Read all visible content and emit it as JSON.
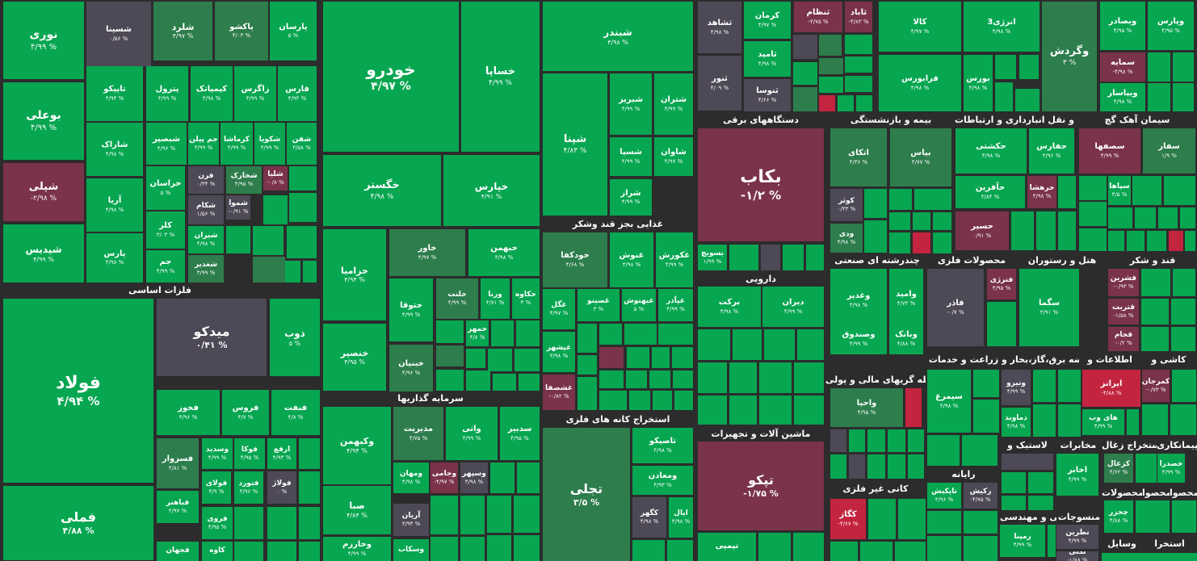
{
  "colors": {
    "positive": "#07a651",
    "light_positive": "#15b05a",
    "muted_positive": "#2e7d4d",
    "neutral": "#4e4956",
    "negative": "#c3243f",
    "dark_negative": "#7a3349",
    "background": "#2c2c2c"
  },
  "headers": [
    {
      "id": "h-fezat",
      "label": "فلزات اساسی"
    },
    {
      "id": "h-ghazaei",
      "label": "غذایی بجز قند وشکر"
    },
    {
      "id": "h-sarmaye",
      "label": "سرمایه گذاریها"
    },
    {
      "id": "h-estekhraj",
      "label": "استخراج کانه های فلزی"
    },
    {
      "id": "h-dastgah",
      "label": "دستگاههای برقی"
    },
    {
      "id": "h-bime",
      "label": "بیمه و بازنشستگی"
    },
    {
      "id": "h-haml",
      "label": "حمل و نقل انبارداری و ارتباطات"
    },
    {
      "id": "h-siman",
      "label": "سیمان آهک گچ"
    },
    {
      "id": "h-darooei",
      "label": "دارویی"
    },
    {
      "id": "h-chand",
      "label": "چندرشته ای صنعتی"
    },
    {
      "id": "h-mahsulat",
      "label": "محصولات فلزی"
    },
    {
      "id": "h-hotel",
      "label": "هتل و رستوران"
    },
    {
      "id": "h-ghand",
      "label": "قند و شکر"
    },
    {
      "id": "h-zeraat",
      "label": "زراعت و خدمات"
    },
    {
      "id": "h-arze",
      "label": "عرضه برق،گاز،بخار و"
    },
    {
      "id": "h-ettelaat",
      "label": "اطلاعات و"
    },
    {
      "id": "h-kashi",
      "label": "کاشی و"
    },
    {
      "id": "h-vasete",
      "label": "واسطه گریهای مالی و پولی"
    },
    {
      "id": "h-mashin",
      "label": "ماشین آلات و تجهیزات"
    },
    {
      "id": "h-raiane",
      "label": "رایانه"
    },
    {
      "id": "h-lastik",
      "label": "لاستیک و"
    },
    {
      "id": "h-mokhaberat",
      "label": "مخابرات"
    },
    {
      "id": "h-estekhrajzoghal",
      "label": "استخراج زغال"
    },
    {
      "id": "h-peyman",
      "label": "پیمانکاری"
    },
    {
      "id": "h-kani",
      "label": "کانی غیر فلزی"
    },
    {
      "id": "h-fani",
      "label": "فنی و مهندسی"
    },
    {
      "id": "h-mansujat",
      "label": "منسوجات"
    },
    {
      "id": "h-mahsula1",
      "label": "محصولات"
    },
    {
      "id": "h-mahsula2",
      "label": "محصوا"
    },
    {
      "id": "h-mahsula3",
      "label": "محصوا"
    },
    {
      "id": "h-vasayel",
      "label": "وسایل"
    },
    {
      "id": "h-estekhr2",
      "label": "استخرا"
    }
  ],
  "tiles": [
    {
      "id": "noori",
      "name": "نوری",
      "pct": "۴/۹۹ %",
      "c": "g"
    },
    {
      "id": "shasta",
      "name": "شسینا",
      "pct": "۰/۵۶ %",
      "c": "gr"
    },
    {
      "id": "sharod",
      "name": "شلرد",
      "pct": "۴/۹۷ %",
      "c": "dg"
    },
    {
      "id": "pakshoo",
      "name": "پاکشو",
      "pct": "۴/۰۳ %",
      "c": "dg"
    },
    {
      "id": "parsan",
      "name": "پارسان",
      "pct": "۵ %",
      "c": "g"
    },
    {
      "id": "booali",
      "name": "بوعلی",
      "pct": "۴/۹۹ %",
      "c": "g"
    },
    {
      "id": "tapiko",
      "name": "تاپیکو",
      "pct": "۴/۹۴ %",
      "c": "g"
    },
    {
      "id": "petrol",
      "name": "پترول",
      "pct": "۴/۹۹ %",
      "c": "g"
    },
    {
      "id": "kimiatec",
      "name": "کیمیاتک",
      "pct": "۴/۹۸ %",
      "c": "g"
    },
    {
      "id": "zagros",
      "name": "زاگرس",
      "pct": "۴/۹۹ %",
      "c": "g"
    },
    {
      "id": "fars",
      "name": "فارس",
      "pct": "۴/۹۴ %",
      "c": "g"
    },
    {
      "id": "shapli",
      "name": "شپلی",
      "pct": "-۲/۹۸ %",
      "c": "dr"
    },
    {
      "id": "sharak",
      "name": "شاراک",
      "pct": "۴/۹۸ %",
      "c": "g"
    },
    {
      "id": "shbandar",
      "name": "شبصیر",
      "pct": "۴/۹۶ %",
      "c": "g"
    },
    {
      "id": "jampilan",
      "name": "جم پیلن",
      "pct": "۴/۹۹ %",
      "c": "g"
    },
    {
      "id": "karmasha",
      "name": "کرماشا",
      "pct": "۴/۹۹ %",
      "c": "g"
    },
    {
      "id": "shkobir",
      "name": "شکویا",
      "pct": "۴/۹۹ %",
      "c": "g"
    },
    {
      "id": "shafan",
      "name": "شفن",
      "pct": "۳/۵۸ %",
      "c": "g"
    },
    {
      "id": "aria",
      "name": "آریا",
      "pct": "۴/۹۸ %",
      "c": "g"
    },
    {
      "id": "khorasan",
      "name": "خراسان",
      "pct": "۵ %",
      "c": "g"
    },
    {
      "id": "faran",
      "name": "فرن",
      "pct": "۰/۳۴ %",
      "c": "gr"
    },
    {
      "id": "shkharak",
      "name": "شخارک",
      "pct": "۴/۹۵ %",
      "c": "dg"
    },
    {
      "id": "shloa",
      "name": "شلیا",
      "pct": "-۰/۸ %",
      "c": "dr"
    },
    {
      "id": "shakam",
      "name": "شکام",
      "pct": "۱/۵۶ %",
      "c": "gr"
    },
    {
      "id": "shamvad",
      "name": "شموا",
      "pct": "-۰/۹۱ %",
      "c": "gr"
    },
    {
      "id": "shepdis",
      "name": "شپدیس",
      "pct": "۴/۹۹ %",
      "c": "g"
    },
    {
      "id": "pars",
      "name": "پارس",
      "pct": "۴/۹۸ %",
      "c": "g"
    },
    {
      "id": "klar",
      "name": "کلر",
      "pct": "۳/۰۳ %",
      "c": "g"
    },
    {
      "id": "shiran",
      "name": "شیران",
      "pct": "۴/۹۸ %",
      "c": "g"
    },
    {
      "id": "jam",
      "name": "جم",
      "pct": "۴/۹۹ %",
      "c": "g"
    },
    {
      "id": "shghadir",
      "name": "شغدیر",
      "pct": "۴/۹۹ %",
      "c": "dg"
    },
    {
      "id": "foolad",
      "name": "فولاد",
      "pct": "۴/۹۴ %",
      "c": "g"
    },
    {
      "id": "midco",
      "name": "میدکو",
      "pct": "۰/۴۱ %",
      "c": "gr"
    },
    {
      "id": "zob",
      "name": "ذوب",
      "pct": "۵ %",
      "c": "g"
    },
    {
      "id": "fkhooz",
      "name": "فخوز",
      "pct": "۴/۹۶ %",
      "c": "g"
    },
    {
      "id": "foroos",
      "name": "فروس",
      "pct": "۴/۷ %",
      "c": "g"
    },
    {
      "id": "fanft",
      "name": "فنفت",
      "pct": "۴/۸ %",
      "c": "g"
    },
    {
      "id": "fesazvar",
      "name": "فسزوار",
      "pct": "۴/۸۱ %",
      "c": "dg"
    },
    {
      "id": "vasdid",
      "name": "وسدید",
      "pct": "۴/۹۹ %",
      "c": "g"
    },
    {
      "id": "foka",
      "name": "فوکا",
      "pct": "۴/۹۵ %",
      "c": "g"
    },
    {
      "id": "arfa",
      "name": "ارفع",
      "pct": "۴/۹۳ %",
      "c": "g"
    },
    {
      "id": "foolai",
      "name": "فولای",
      "pct": "۴/۹ %",
      "c": "g"
    },
    {
      "id": "fnoord",
      "name": "فنورد",
      "pct": "۴/۹۶ %",
      "c": "g"
    },
    {
      "id": "folaj",
      "name": "فولاژ",
      "pct": "۰ %",
      "c": "gr"
    },
    {
      "id": "famli",
      "name": "فملی",
      "pct": "۴/۸۸ %",
      "c": "g"
    },
    {
      "id": "faahar",
      "name": "فباهنر",
      "pct": "۴/۹۷ %",
      "c": "g"
    },
    {
      "id": "faroo",
      "name": "فروی",
      "pct": "۴/۹۵ %",
      "c": "g"
    },
    {
      "id": "fjahan",
      "name": "فجهان",
      "pct": "",
      "c": "g"
    },
    {
      "id": "kaveh",
      "name": "کاوه",
      "pct": "",
      "c": "g"
    },
    {
      "id": "khodro",
      "name": "خودرو",
      "pct": "۴/۹۷ %",
      "c": "g"
    },
    {
      "id": "khsapa",
      "name": "خساپا",
      "pct": "۴/۹۹ %",
      "c": "g"
    },
    {
      "id": "khgostar",
      "name": "خگستر",
      "pct": "۴/۹۸ %",
      "c": "g"
    },
    {
      "id": "khparse",
      "name": "خپارس",
      "pct": "۴/۹۱ %",
      "c": "g"
    },
    {
      "id": "khazamia",
      "name": "خزامیا",
      "pct": "۴/۹۴ %",
      "c": "g"
    },
    {
      "id": "khavar",
      "name": "خاور",
      "pct": "۴/۹۷ %",
      "c": "dg"
    },
    {
      "id": "khbahman",
      "name": "خبهمن",
      "pct": "۴/۹۸ %",
      "c": "g"
    },
    {
      "id": "khtoofa",
      "name": "ختوقا",
      "pct": "۴/۹۹ %",
      "c": "g"
    },
    {
      "id": "khlant",
      "name": "خلنت",
      "pct": "۴/۹۹ %",
      "c": "dg"
    },
    {
      "id": "varna",
      "name": "ورنا",
      "pct": "۴/۷۱ %",
      "c": "g"
    },
    {
      "id": "khakaveh",
      "name": "خکاوه",
      "pct": "۳ %",
      "c": "g"
    },
    {
      "id": "khomehr",
      "name": "خمهر",
      "pct": "۴/۸ %",
      "c": "g"
    },
    {
      "id": "khonsar",
      "name": "خنصیر",
      "pct": "۴/۹۵ %",
      "c": "g"
    },
    {
      "id": "khbanian",
      "name": "خبنیان",
      "pct": "۴/۹۶ %",
      "c": "dg"
    },
    {
      "id": "shabandar",
      "name": "شبندر",
      "pct": "۴/۹۸ %",
      "c": "g"
    },
    {
      "id": "shepna",
      "name": "شپنا",
      "pct": "۴/۸۳ %",
      "c": "g"
    },
    {
      "id": "shbriz",
      "name": "شبریز",
      "pct": "۴/۹۹ %",
      "c": "g"
    },
    {
      "id": "shtran",
      "name": "شتران",
      "pct": "۴/۹۹ %",
      "c": "g"
    },
    {
      "id": "shsapa",
      "name": "شسپا",
      "pct": "۴/۹۹ %",
      "c": "g"
    },
    {
      "id": "shavan",
      "name": "شاوان",
      "pct": "۴/۹۷ %",
      "c": "g"
    },
    {
      "id": "shraz",
      "name": "شراز",
      "pct": "۴/۹۹ %",
      "c": "g"
    },
    {
      "id": "khoodkafa",
      "name": "خودکفا",
      "pct": "۴/۶۸ %",
      "c": "dg"
    },
    {
      "id": "ghnosh",
      "name": "غنوش",
      "pct": "۴/۹۸ %",
      "c": "g"
    },
    {
      "id": "ghkoresh",
      "name": "غکورش",
      "pct": "۴/۹۹ %",
      "c": "g"
    },
    {
      "id": "ghgol",
      "name": "غگل",
      "pct": "۴/۹۷ %",
      "c": "g"
    },
    {
      "id": "ghasino",
      "name": "غصینو",
      "pct": "۳ %",
      "c": "g"
    },
    {
      "id": "ghbahnoosh",
      "name": "غبهنوش",
      "pct": "۵ %",
      "c": "g"
    },
    {
      "id": "ghzagar",
      "name": "غپآذر",
      "pct": "۴/۹۹ %",
      "c": "g"
    },
    {
      "id": "ghshahr",
      "name": "غیشهر",
      "pct": "۴/۹۸ %",
      "c": "g"
    },
    {
      "id": "ghshasfa",
      "name": "غشصفا",
      "pct": "-۰/۸۲ %",
      "c": "dr"
    },
    {
      "id": "vakbahman",
      "name": "وکبهمن",
      "pct": "۴/۹۴ %",
      "c": "g"
    },
    {
      "id": "modirit",
      "name": "مدیریت",
      "pct": "۴/۷۵ %",
      "c": "dg"
    },
    {
      "id": "vati",
      "name": "واتی",
      "pct": "۴/۹۹ %",
      "c": "g"
    },
    {
      "id": "sadbir",
      "name": "سدبیر",
      "pct": "۴/۹۵ %",
      "c": "g"
    },
    {
      "id": "vbahan",
      "name": "ومهان",
      "pct": "۴/۹۸ %",
      "c": "g"
    },
    {
      "id": "vjami",
      "name": "وجامی",
      "pct": "-۴/۹۷ %",
      "c": "dr"
    },
    {
      "id": "vsepahr",
      "name": "وسپهر",
      "pct": "۴/۹۸ %",
      "c": "gr"
    },
    {
      "id": "saba",
      "name": "صبا",
      "pct": "۴/۸۴ %",
      "c": "g"
    },
    {
      "id": "arian",
      "name": "آریان",
      "pct": "۴/۹۳ %",
      "c": "gr"
    },
    {
      "id": "vkharazm",
      "name": "وخارزم",
      "pct": "۴/۹۹ %",
      "c": "g"
    },
    {
      "id": "vaskab",
      "name": "وسکاب",
      "pct": "",
      "c": "g"
    },
    {
      "id": "tajalli",
      "name": "تجلی",
      "pct": "۳/۵ %",
      "c": "dg"
    },
    {
      "id": "tasapiko",
      "name": "تاصیکو",
      "pct": "۴/۹۸ %",
      "c": "g"
    },
    {
      "id": "vmaadan",
      "name": "ومعادن",
      "pct": "۴/۹۳ %",
      "c": "g"
    },
    {
      "id": "kaghar",
      "name": "کگهر",
      "pct": "۴/۹۸ %",
      "c": "gr"
    },
    {
      "id": "ayal",
      "name": "ایال",
      "pct": "۴/۹۸ %",
      "c": "g"
    },
    {
      "id": "sashahed",
      "name": "ثشاهد",
      "pct": "۴/۹۸ %",
      "c": "gr"
    },
    {
      "id": "karman",
      "name": "کرمان",
      "pct": "۴/۹۷ %",
      "c": "g"
    },
    {
      "id": "snezam",
      "name": "ثنظام",
      "pct": "-۴/۷۵ %",
      "c": "dr"
    },
    {
      "id": "sabad",
      "name": "ثاباد",
      "pct": "-۴/۸۳ %",
      "c": "dr"
    },
    {
      "id": "somid",
      "name": "ثامید",
      "pct": "۴/۹۸ %",
      "c": "g"
    },
    {
      "id": "snoor",
      "name": "ثنور",
      "pct": "۴/۰۹ %",
      "c": "gr"
    },
    {
      "id": "sonosa",
      "name": "ثنوسا",
      "pct": "۴/۶۶ %",
      "c": "gr"
    },
    {
      "id": "kala",
      "name": "کالا",
      "pct": "۴/۹۷ %",
      "c": "g"
    },
    {
      "id": "enerji3",
      "name": "انرژی3",
      "pct": "۴/۹۸ %",
      "c": "g"
    },
    {
      "id": "vgardesh",
      "name": "وگردش",
      "pct": "۳ %",
      "c": "dg"
    },
    {
      "id": "vbsadr",
      "name": "وبصادر",
      "pct": "۴/۹۵ %",
      "c": "g"
    },
    {
      "id": "vpars",
      "name": "وپارس",
      "pct": "۴/۹۵ %",
      "c": "g"
    },
    {
      "id": "farabourse",
      "name": "فرابورس",
      "pct": "۴/۹۸ %",
      "c": "g"
    },
    {
      "id": "bourse",
      "name": "بورس",
      "pct": "۴/۹۸ %",
      "c": "g"
    },
    {
      "id": "samaye",
      "name": "سمایه",
      "pct": "-۴/۹۸ %",
      "c": "dr"
    },
    {
      "id": "vpasar",
      "name": "ویپاسار",
      "pct": "۴/۹۸ %",
      "c": "g"
    },
    {
      "id": "bakab",
      "name": "بکاب",
      "pct": "-۱/۲ %",
      "c": "dr"
    },
    {
      "id": "atka",
      "name": "اتکای",
      "pct": "۴/۳۶ %",
      "c": "dg"
    },
    {
      "id": "bayas",
      "name": "بپاس",
      "pct": "۴/۷۷ %",
      "c": "dg"
    },
    {
      "id": "hakashti",
      "name": "حکشتی",
      "pct": "۴/۹۸ %",
      "c": "g"
    },
    {
      "id": "hafars",
      "name": "حفارس",
      "pct": "۴/۹۶ %",
      "c": "g"
    },
    {
      "id": "sasfaha",
      "name": "سصفها",
      "pct": "۴/۹۹ %",
      "c": "dr"
    },
    {
      "id": "safar",
      "name": "سفار",
      "pct": "۱/۹ %",
      "c": "dg"
    },
    {
      "id": "koser",
      "name": "کوثر",
      "pct": "۰/۳۳ %",
      "c": "gr"
    },
    {
      "id": "vdi",
      "name": "ودی",
      "pct": "۴/۹۸ %",
      "c": "dg"
    },
    {
      "id": "haafarin",
      "name": "حآفرین",
      "pct": "۳/۸۴ %",
      "c": "g"
    },
    {
      "id": "harhasha",
      "name": "حرهشا",
      "pct": "۴/۹۸ %",
      "c": "dr"
    },
    {
      "id": "hasir",
      "name": "حسیر",
      "pct": "۰/۹۱ %",
      "c": "dr"
    },
    {
      "id": "bsovich",
      "name": "بسویچ",
      "pct": "۱/۹۹ %",
      "c": "g"
    },
    {
      "id": "siaha",
      "name": "سپاها",
      "pct": "۴/۵ %",
      "c": "g"
    },
    {
      "id": "barakat",
      "name": "برکت",
      "pct": "۴/۹۸ %",
      "c": "g"
    },
    {
      "id": "diran",
      "name": "دیران",
      "pct": "۴/۹۹ %",
      "c": "g"
    },
    {
      "id": "vghadir",
      "name": "وغدیر",
      "pct": "۴/۹۸ %",
      "c": "g"
    },
    {
      "id": "vamid",
      "name": "وامید",
      "pct": "۴/۷۳ %",
      "c": "g"
    },
    {
      "id": "vsandogh",
      "name": "وصندوق",
      "pct": "۴/۹۹ %",
      "c": "g"
    },
    {
      "id": "vbank",
      "name": "وبانک",
      "pct": "۴/۸۸ %",
      "c": "g"
    },
    {
      "id": "faghar",
      "name": "فاذر",
      "pct": "-۰/۷ %",
      "c": "gr"
    },
    {
      "id": "fanari",
      "name": "فنرژی",
      "pct": "۴/۹۵ %",
      "c": "dr"
    },
    {
      "id": "sagma",
      "name": "سگما",
      "pct": "۴/۹۱ %",
      "c": "g"
    },
    {
      "id": "ghshiran",
      "name": "قشرین",
      "pct": "-۰/۹۳ %",
      "c": "dr"
    },
    {
      "id": "ghatrabat",
      "name": "قتربت",
      "pct": "-۱/۵۸ %",
      "c": "dr"
    },
    {
      "id": "ghjam",
      "name": "قجام",
      "pct": "-۰/۲ %",
      "c": "dr"
    },
    {
      "id": "simorgh",
      "name": "سیمرغ",
      "pct": "۴/۹۸ %",
      "c": "g"
    },
    {
      "id": "vniro",
      "name": "ونیرو",
      "pct": "۴/۹۹ %",
      "c": "gr"
    },
    {
      "id": "damavand",
      "name": "دماوند",
      "pct": "۴/۹۸ %",
      "c": "g"
    },
    {
      "id": "iranz",
      "name": "ایرانز",
      "pct": "-۴/۸۸ %",
      "c": "r"
    },
    {
      "id": "havhab",
      "name": "های وب",
      "pct": "۴/۹۹ %",
      "c": "g"
    },
    {
      "id": "kamarjan",
      "name": "کمرجان",
      "pct": "-۰/۷۳ %",
      "c": "dr"
    },
    {
      "id": "vahya",
      "name": "واحیا",
      "pct": "۴/۹۵ %",
      "c": "dg"
    },
    {
      "id": "tapko",
      "name": "تپکو",
      "pct": "-۱/۷۵ %",
      "c": "dr"
    },
    {
      "id": "tapiko2",
      "name": "تپمپی",
      "pct": "",
      "c": "g"
    },
    {
      "id": "tapkish",
      "name": "تاپکیش",
      "pct": "۴/۹۶ %",
      "c": "g"
    },
    {
      "id": "rekish",
      "name": "رکیش",
      "pct": "-۴/۷۵ %",
      "c": "gr"
    },
    {
      "id": "akhabr",
      "name": "اخابر",
      "pct": "۴/۹۹ %",
      "c": "g"
    },
    {
      "id": "kzghal",
      "name": "کزغال",
      "pct": "۴/۶۲ %",
      "c": "dg"
    },
    {
      "id": "khasra",
      "name": "خصدرا",
      "pct": "۴/۹۹ %",
      "c": "g"
    },
    {
      "id": "chakhar",
      "name": "چخزر",
      "pct": "۴/۸۸ %",
      "c": "g"
    },
    {
      "id": "kgaz",
      "name": "کگاز",
      "pct": "-۴/۶۷ %",
      "c": "r"
    },
    {
      "id": "rampna",
      "name": "رمپنا",
      "pct": "۴/۹۹ %",
      "c": "g"
    },
    {
      "id": "naztaran",
      "name": "نطرین",
      "pct": "۴/۹۹ %",
      "c": "gr"
    },
    {
      "id": "nakhi",
      "name": "نکتی",
      "pct": "-۱/۸۸ %",
      "c": "gr"
    }
  ]
}
